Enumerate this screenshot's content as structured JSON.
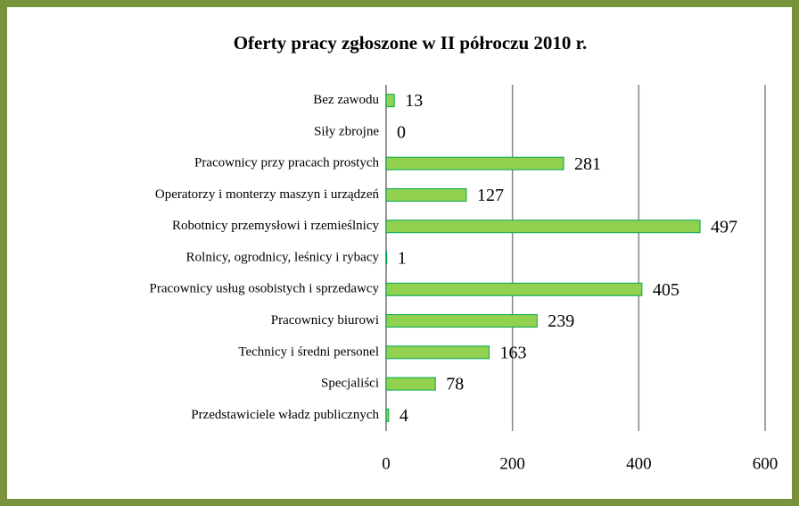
{
  "chart_data": {
    "type": "bar",
    "orientation": "horizontal",
    "title": "Oferty pracy zgłoszone w II półroczu 2010 r.",
    "categories": [
      "Bez zawodu",
      "Siły zbrojne",
      "Pracownicy przy pracach prostych",
      "Operatorzy i monterzy maszyn i urządzeń",
      "Robotnicy przemysłowi i rzemieślnicy",
      "Rolnicy, ogrodnicy, leśnicy i rybacy",
      "Pracownicy usług osobistych i sprzedawcy",
      "Pracownicy biurowi",
      "Technicy i średni personel",
      "Specjaliści",
      "Przedstawiciele władz publicznych"
    ],
    "values": [
      13,
      0,
      281,
      127,
      497,
      1,
      405,
      239,
      163,
      78,
      4
    ],
    "color": "#92d050",
    "edge_color": "#00a651",
    "xlim": [
      0,
      600
    ],
    "xticks": [
      0,
      200,
      400,
      600
    ],
    "grid": true
  }
}
